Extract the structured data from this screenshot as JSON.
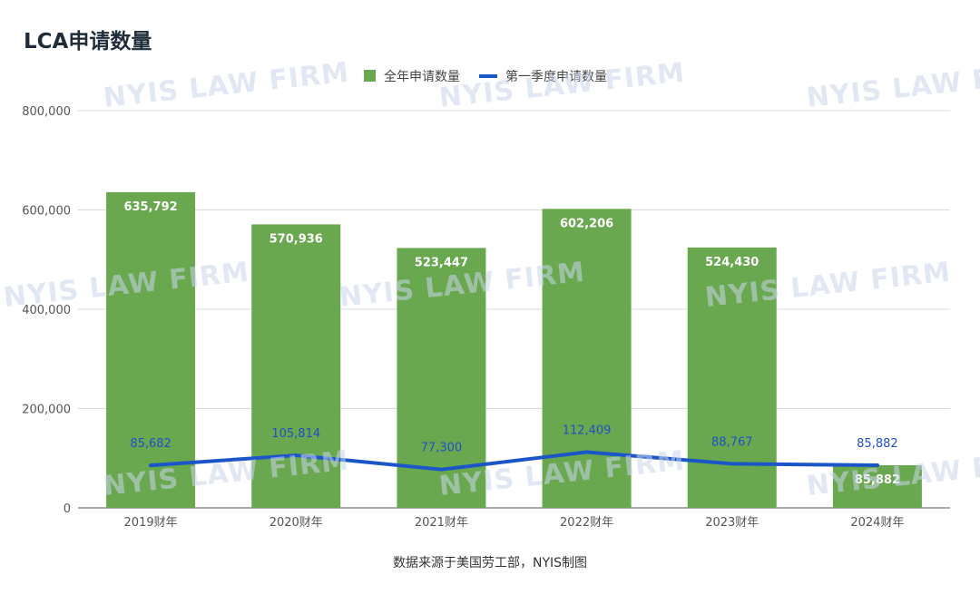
{
  "watermark": "NYIS LAW FIRM",
  "source_note": "数据来源于美国劳工部，NYIS制图",
  "chart_data": {
    "type": "bar",
    "title": "LCA申请数量",
    "categories": [
      "2019财年",
      "2020财年",
      "2021财年",
      "2022财年",
      "2023财年",
      "2024财年"
    ],
    "ylim": [
      0,
      800000
    ],
    "yticks": [
      0,
      200000,
      400000,
      600000,
      800000
    ],
    "ytick_labels": [
      "0",
      "200,000",
      "400,000",
      "600,000",
      "800,000"
    ],
    "grid": true,
    "legend_position": "top-center",
    "series": [
      {
        "name": "全年申请数量",
        "type": "bar",
        "color": "#6aa84f",
        "values": [
          635792,
          570936,
          523447,
          602206,
          524430,
          85882
        ],
        "labels": [
          "635,792",
          "570,936",
          "523,447",
          "602,206",
          "524,430",
          "85,882"
        ]
      },
      {
        "name": "第一季度申请数量",
        "type": "line",
        "color": "#1a56c8",
        "values": [
          85682,
          105814,
          77300,
          112409,
          88767,
          85882
        ],
        "labels": [
          "85,682",
          "105,814",
          "77,300",
          "112,409",
          "88,767",
          "85,882"
        ]
      }
    ]
  }
}
